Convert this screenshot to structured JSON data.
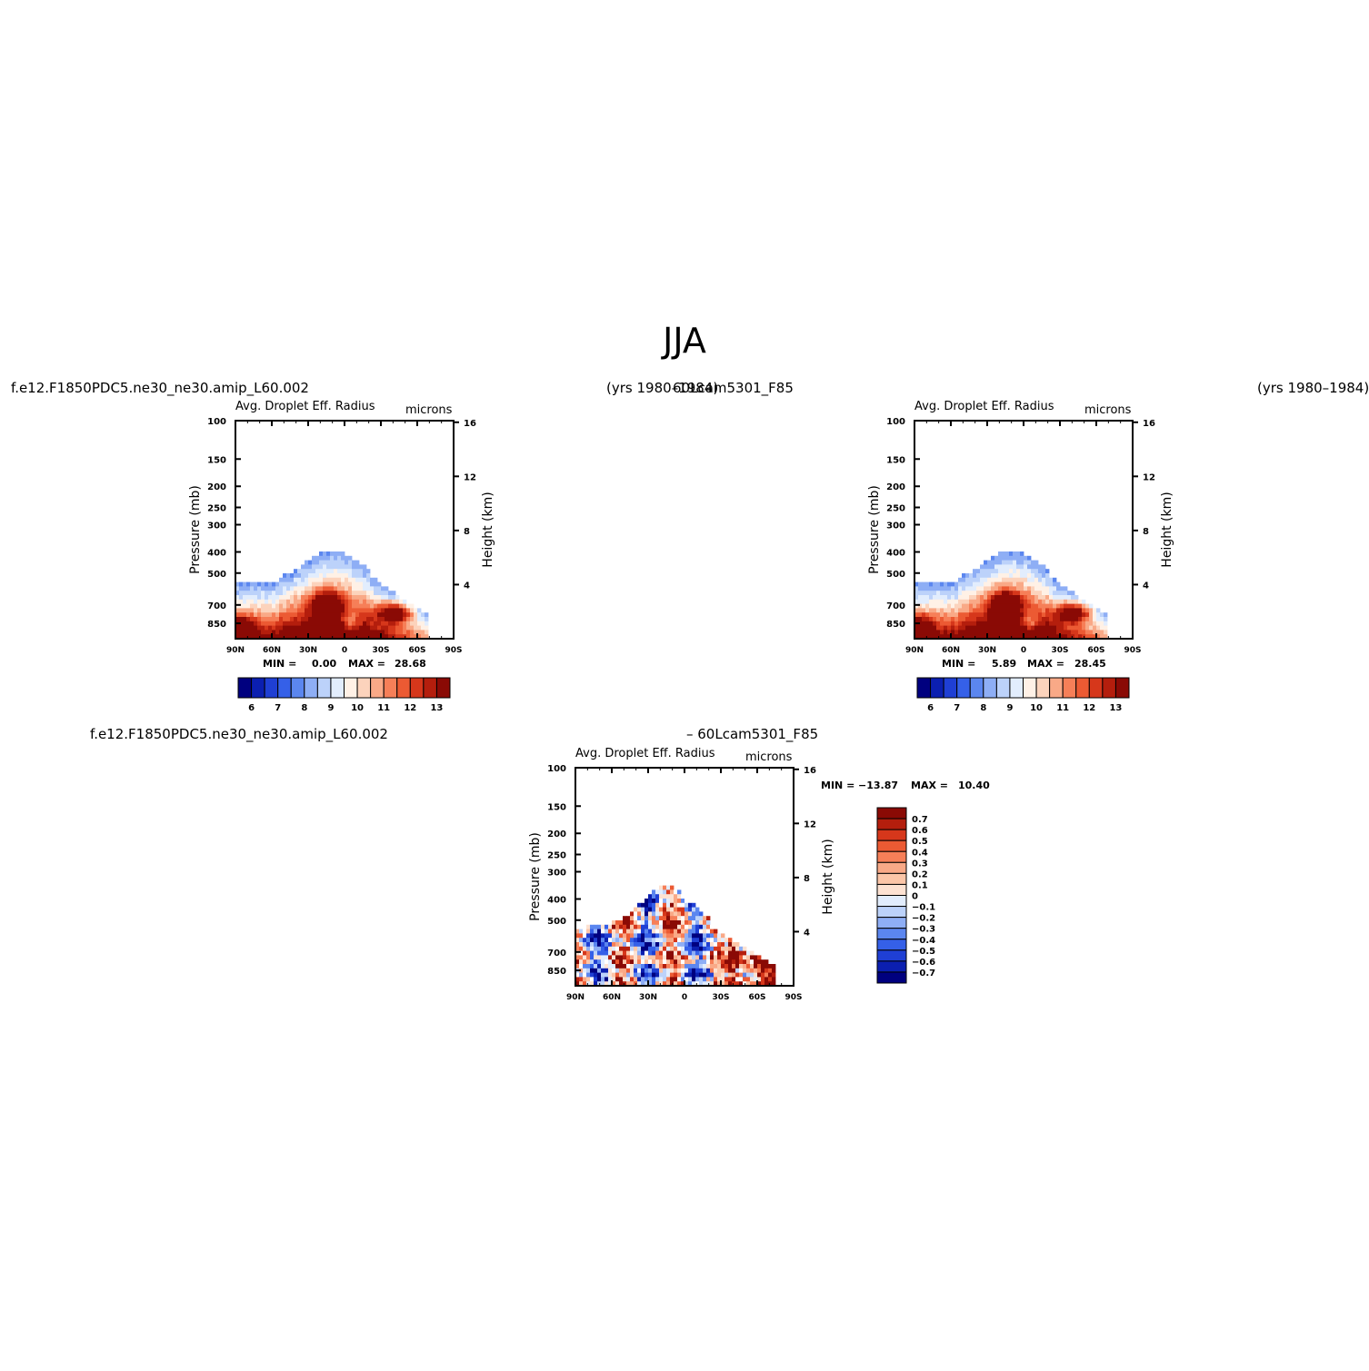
{
  "title": "JJA",
  "panels": [
    {
      "case_label": "f.e12.F1850PDC5.ne30_ne30.amip_L60.002",
      "years_label": "(yrs 1980–1984)",
      "field_label": "Avg. Droplet Eff. Radius",
      "units_label": "microns",
      "min_label": "MIN =",
      "min_value": "0.00",
      "max_label": "MAX =",
      "max_value": "28.68"
    },
    {
      "case_label": "60Lcam5301_F85",
      "years_label": "(yrs 1980–1984)",
      "field_label": "Avg. Droplet Eff. Radius",
      "units_label": "microns",
      "min_label": "MIN =",
      "min_value": "5.89",
      "max_label": "MAX =",
      "max_value": "28.45"
    },
    {
      "case_label": "f.e12.F1850PDC5.ne30_ne30.amip_L60.002",
      "case_label_2": "– 60Lcam5301_F85",
      "field_label": "Avg. Droplet Eff. Radius",
      "units_label": "microns",
      "min_label": "MIN =",
      "min_value": "−13.87",
      "max_label": "MAX =",
      "max_value": "10.40"
    }
  ],
  "axes": {
    "ylabel_left": "Pressure (mb)",
    "ylabel_right": "Height (km)",
    "pressure_ticks": [
      "100",
      "150",
      "200",
      "250",
      "300",
      "400",
      "500",
      "700",
      "850"
    ],
    "height_ticks": [
      "16",
      "12",
      "8",
      "4"
    ],
    "lat_ticks": [
      "90N",
      "60N",
      "30N",
      "0",
      "30S",
      "60S",
      "90S"
    ]
  },
  "colors": {
    "abs_levels": [
      "#00007f",
      "#0b1fb0",
      "#1f3fd4",
      "#3560e8",
      "#5b86ef",
      "#8eaef5",
      "#bcd2fa",
      "#e2edfd",
      "#fff1e6",
      "#fcd3bc",
      "#f9a987",
      "#f67f58",
      "#ec5a33",
      "#d6371b",
      "#b41e0d",
      "#8a0a05"
    ],
    "diff_levels": [
      "#8a0a05",
      "#b41e0d",
      "#d6371b",
      "#ec5a33",
      "#f67f58",
      "#f9a987",
      "#fcc6a8",
      "#fde2d2",
      "#ffffff",
      "#e2edfd",
      "#bcd2fa",
      "#8eaef5",
      "#5b86ef",
      "#3560e8",
      "#1f3fd4",
      "#0b1fb0",
      "#00007f"
    ]
  },
  "chart_data": [
    {
      "type": "heatmap",
      "title": "Avg. Droplet Eff. Radius",
      "xlabel": "",
      "ylabel": "Pressure (mb)",
      "ylabel_right": "Height (km)",
      "x_ticks": [
        "90N",
        "60N",
        "30N",
        "0",
        "30S",
        "60S",
        "90S"
      ],
      "y_ticks": [
        100,
        150,
        200,
        250,
        300,
        400,
        500,
        700,
        850
      ],
      "y_scale": "log",
      "ylim": [
        1000,
        100
      ],
      "colorbar_ticks": [
        "6",
        "7",
        "8",
        "9",
        "10",
        "11",
        "12",
        "13"
      ],
      "min": 0.0,
      "max": 28.68
    },
    {
      "type": "heatmap",
      "title": "Avg. Droplet Eff. Radius",
      "xlabel": "",
      "ylabel": "Pressure (mb)",
      "ylabel_right": "Height (km)",
      "x_ticks": [
        "90N",
        "60N",
        "30N",
        "0",
        "30S",
        "60S",
        "90S"
      ],
      "y_ticks": [
        100,
        150,
        200,
        250,
        300,
        400,
        500,
        700,
        850
      ],
      "y_scale": "log",
      "ylim": [
        1000,
        100
      ],
      "colorbar_ticks": [
        "6",
        "7",
        "8",
        "9",
        "10",
        "11",
        "12",
        "13"
      ],
      "min": 5.89,
      "max": 28.45
    },
    {
      "type": "heatmap",
      "title": "Avg. Droplet Eff. Radius",
      "xlabel": "",
      "ylabel": "Pressure (mb)",
      "ylabel_right": "Height (km)",
      "x_ticks": [
        "90N",
        "60N",
        "30N",
        "0",
        "30S",
        "60S",
        "90S"
      ],
      "y_ticks": [
        100,
        150,
        200,
        250,
        300,
        400,
        500,
        700,
        850
      ],
      "y_scale": "log",
      "ylim": [
        1000,
        100
      ],
      "colorbar_ticks": [
        "0.7",
        "0.6",
        "0.5",
        "0.4",
        "0.3",
        "0.2",
        "0.1",
        "0",
        "−0.1",
        "−0.2",
        "−0.3",
        "−0.4",
        "−0.5",
        "−0.6",
        "−0.7"
      ],
      "min": -13.87,
      "max": 10.4
    }
  ]
}
